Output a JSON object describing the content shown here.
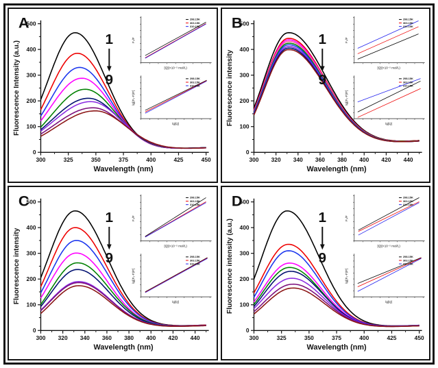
{
  "figure": {
    "border_color": "#141414",
    "background": "#ffffff",
    "panel_letters": [
      "A",
      "B",
      "C",
      "D"
    ]
  },
  "shared": {
    "annotation": {
      "start_label": "1",
      "end_label": "9",
      "arrow": "down-arrow"
    },
    "legend_temperatures": [
      "298.15K",
      "303.15K",
      "310.15K"
    ],
    "legend_marker_colors": [
      "#000000",
      "#ee0000",
      "#2222ee"
    ],
    "inset_top_ylabel": "F₀/F",
    "inset_top_xlabel": "[Q](×10⁻⁵ mol/L)",
    "inset_bottom_ylabel": "lg[(F₀-F)/F]",
    "inset_bottom_xlabel": "lg[Q]"
  },
  "chart_data": [
    {
      "panel": "A",
      "type": "line",
      "xlabel": "Wavelength (nm)",
      "ylabel": "Fluorescence Intensity (a.u.)",
      "xlim": [
        300,
        450
      ],
      "ylim": [
        0,
        500
      ],
      "xticks": [
        300,
        325,
        350,
        375,
        400,
        425,
        450
      ],
      "yticks": [
        0,
        100,
        200,
        300,
        400,
        500
      ],
      "tail_sigma": 28,
      "series": [
        {
          "name": "curve-1",
          "color": "#000000",
          "peak_nm": 331,
          "peak_intensity": 465,
          "value_at_300": 205,
          "value_at_450": 18
        },
        {
          "name": "curve-2",
          "color": "#ee0000",
          "peak_nm": 333,
          "peak_intensity": 385,
          "value_at_300": 166,
          "value_at_450": 18
        },
        {
          "name": "curve-3",
          "color": "#1a35ee",
          "peak_nm": 335,
          "peak_intensity": 330,
          "value_at_300": 141,
          "value_at_450": 18
        },
        {
          "name": "curve-4",
          "color": "#ff00ff",
          "peak_nm": 337,
          "peak_intensity": 288,
          "value_at_300": 122,
          "value_at_450": 18
        },
        {
          "name": "curve-5",
          "color": "#008000",
          "peak_nm": 340,
          "peak_intensity": 245,
          "value_at_300": 98,
          "value_at_450": 18
        },
        {
          "name": "curve-6",
          "color": "#001070",
          "peak_nm": 343,
          "peak_intensity": 210,
          "value_at_300": 88,
          "value_at_450": 18
        },
        {
          "name": "curve-7",
          "color": "#8a2be2",
          "peak_nm": 345,
          "peak_intensity": 197,
          "value_at_300": 82,
          "value_at_450": 17
        },
        {
          "name": "curve-8",
          "color": "#7c0f7c",
          "peak_nm": 347,
          "peak_intensity": 173,
          "value_at_300": 71,
          "value_at_450": 17
        },
        {
          "name": "curve-9",
          "color": "#8b1515",
          "peak_nm": 349,
          "peak_intensity": 161,
          "value_at_300": 62,
          "value_at_450": 17
        }
      ],
      "insets": [
        {
          "id": "stern-volmer-plot",
          "ylabel": "F₀/F",
          "xlabel": "[Q](×10⁻⁵ mol/L)",
          "lines": [
            {
              "color": "#000000",
              "x0": 0.06,
              "y0": 0.16,
              "x1": 0.94,
              "y1": 0.9
            },
            {
              "color": "#ee0000",
              "x0": 0.06,
              "y0": 0.11,
              "x1": 0.94,
              "y1": 0.87
            },
            {
              "color": "#2222ee",
              "x0": 0.06,
              "y0": 0.1,
              "x1": 0.94,
              "y1": 0.86
            }
          ]
        },
        {
          "id": "double-log-plot",
          "ylabel": "lg[(F₀-F)/F]",
          "xlabel": "lg[Q]",
          "lines": [
            {
              "color": "#000000",
              "x0": 0.06,
              "y0": 0.2,
              "x1": 0.95,
              "y1": 0.92
            },
            {
              "color": "#ee0000",
              "x0": 0.06,
              "y0": 0.16,
              "x1": 0.95,
              "y1": 0.91
            },
            {
              "color": "#2222ee",
              "x0": 0.06,
              "y0": 0.13,
              "x1": 0.95,
              "y1": 0.9
            }
          ]
        }
      ]
    },
    {
      "panel": "B",
      "type": "line",
      "xlabel": "Wavelength (nm)",
      "ylabel": "Fluorescence intensity",
      "xlim": [
        300,
        450
      ],
      "ylim": [
        0,
        500
      ],
      "xticks": [
        300,
        320,
        340,
        360,
        380,
        400,
        420,
        440
      ],
      "yticks": [
        0,
        100,
        200,
        300,
        400,
        500
      ],
      "tail_sigma": 34,
      "series": [
        {
          "name": "curve-1",
          "color": "#000000",
          "peak_nm": 331,
          "peak_intensity": 465,
          "value_at_300": 172,
          "value_at_450": 45
        },
        {
          "name": "curve-2",
          "color": "#ee0000",
          "peak_nm": 331,
          "peak_intensity": 443,
          "value_at_300": 164,
          "value_at_450": 45
        },
        {
          "name": "curve-3",
          "color": "#ff00ff",
          "peak_nm": 331,
          "peak_intensity": 437,
          "value_at_300": 161,
          "value_at_450": 44
        },
        {
          "name": "curve-4",
          "color": "#ff5fa2",
          "peak_nm": 331,
          "peak_intensity": 431,
          "value_at_300": 158,
          "value_at_450": 44
        },
        {
          "name": "curve-5",
          "color": "#008000",
          "peak_nm": 331,
          "peak_intensity": 424,
          "value_at_300": 156,
          "value_at_450": 44
        },
        {
          "name": "curve-6",
          "color": "#1a35ee",
          "peak_nm": 331,
          "peak_intensity": 418,
          "value_at_300": 153,
          "value_at_450": 43
        },
        {
          "name": "curve-7",
          "color": "#8a2be2",
          "peak_nm": 331,
          "peak_intensity": 411,
          "value_at_300": 150,
          "value_at_450": 43
        },
        {
          "name": "curve-8",
          "color": "#001070",
          "peak_nm": 331,
          "peak_intensity": 405,
          "value_at_300": 148,
          "value_at_450": 43
        },
        {
          "name": "curve-9",
          "color": "#8b1515",
          "peak_nm": 331,
          "peak_intensity": 399,
          "value_at_300": 145,
          "value_at_450": 43
        }
      ],
      "insets": [
        {
          "id": "stern-volmer-plot",
          "ylabel": "F₀/F",
          "xlabel": "[Q](×10⁻⁵ mol/L)",
          "lines": [
            {
              "color": "#2222ee",
              "x0": 0.05,
              "y0": 0.32,
              "x1": 0.93,
              "y1": 0.93
            },
            {
              "color": "#ee0000",
              "x0": 0.05,
              "y0": 0.2,
              "x1": 0.93,
              "y1": 0.8
            },
            {
              "color": "#000000",
              "x0": 0.05,
              "y0": 0.08,
              "x1": 0.93,
              "y1": 0.64
            }
          ]
        },
        {
          "id": "double-log-plot",
          "ylabel": "lg[(F₀-F)/F]",
          "xlabel": "lg[Q]",
          "lines": [
            {
              "color": "#2222ee",
              "x0": 0.05,
              "y0": 0.4,
              "x1": 0.96,
              "y1": 0.96
            },
            {
              "color": "#000000",
              "x0": 0.05,
              "y0": 0.16,
              "x1": 0.96,
              "y1": 0.9
            },
            {
              "color": "#ee0000",
              "x0": 0.05,
              "y0": 0.03,
              "x1": 0.96,
              "y1": 0.72
            }
          ]
        }
      ]
    },
    {
      "panel": "C",
      "type": "line",
      "xlabel": "Wavelength (nm)",
      "ylabel": "Fluorescence intensity",
      "xlim": [
        300,
        450
      ],
      "ylim": [
        0,
        500
      ],
      "xticks": [
        300,
        320,
        340,
        360,
        380,
        400,
        420,
        440
      ],
      "yticks": [
        0,
        100,
        200,
        300,
        400,
        500
      ],
      "tail_sigma": 29,
      "series": [
        {
          "name": "curve-1",
          "color": "#000000",
          "peak_nm": 331,
          "peak_intensity": 465,
          "value_at_300": 205,
          "value_at_450": 21
        },
        {
          "name": "curve-2",
          "color": "#ee0000",
          "peak_nm": 331,
          "peak_intensity": 400,
          "value_at_300": 170,
          "value_at_450": 21
        },
        {
          "name": "curve-3",
          "color": "#1a35ee",
          "peak_nm": 332,
          "peak_intensity": 350,
          "value_at_300": 146,
          "value_at_450": 20
        },
        {
          "name": "curve-4",
          "color": "#ff00ff",
          "peak_nm": 332,
          "peak_intensity": 301,
          "value_at_300": 126,
          "value_at_450": 20
        },
        {
          "name": "curve-5",
          "color": "#008000",
          "peak_nm": 333,
          "peak_intensity": 263,
          "value_at_300": 101,
          "value_at_450": 20
        },
        {
          "name": "curve-6",
          "color": "#001070",
          "peak_nm": 333,
          "peak_intensity": 237,
          "value_at_300": 93,
          "value_at_450": 20
        },
        {
          "name": "curve-7",
          "color": "#8a2be2",
          "peak_nm": 334,
          "peak_intensity": 190,
          "value_at_300": 79,
          "value_at_450": 20
        },
        {
          "name": "curve-8",
          "color": "#7c0f7c",
          "peak_nm": 334,
          "peak_intensity": 186,
          "value_at_300": 77,
          "value_at_450": 19
        },
        {
          "name": "curve-9",
          "color": "#8b1515",
          "peak_nm": 334,
          "peak_intensity": 174,
          "value_at_300": 66,
          "value_at_450": 19
        }
      ],
      "insets": [
        {
          "id": "stern-volmer-plot",
          "ylabel": "F₀/F",
          "xlabel": "[Q](×10⁻⁵ mol/L)",
          "lines": [
            {
              "color": "#000000",
              "x0": 0.06,
              "y0": 0.1,
              "x1": 0.94,
              "y1": 0.96
            },
            {
              "color": "#ee0000",
              "x0": 0.06,
              "y0": 0.09,
              "x1": 0.94,
              "y1": 0.87
            },
            {
              "color": "#2222ee",
              "x0": 0.06,
              "y0": 0.085,
              "x1": 0.94,
              "y1": 0.85
            }
          ]
        },
        {
          "id": "double-log-plot",
          "ylabel": "lg[(F₀-F)/F]",
          "xlabel": "lg[Q]",
          "lines": [
            {
              "color": "#000000",
              "x0": 0.06,
              "y0": 0.12,
              "x1": 0.96,
              "y1": 0.94
            },
            {
              "color": "#ee0000",
              "x0": 0.06,
              "y0": 0.11,
              "x1": 0.96,
              "y1": 0.93
            },
            {
              "color": "#2222ee",
              "x0": 0.06,
              "y0": 0.1,
              "x1": 0.96,
              "y1": 0.92
            }
          ]
        }
      ]
    },
    {
      "panel": "D",
      "type": "line",
      "xlabel": "Wavelength (nm)",
      "ylabel": "Fluorescence intensity (a.u.)",
      "xlim": [
        300,
        450
      ],
      "ylim": [
        0,
        500
      ],
      "xticks": [
        300,
        325,
        350,
        375,
        400,
        425,
        450
      ],
      "yticks": [
        0,
        100,
        200,
        300,
        400,
        500
      ],
      "tail_sigma": 29,
      "series": [
        {
          "name": "curve-1",
          "color": "#000000",
          "peak_nm": 330,
          "peak_intensity": 465,
          "value_at_300": 200,
          "value_at_450": 20
        },
        {
          "name": "curve-2",
          "color": "#ee0000",
          "peak_nm": 331,
          "peak_intensity": 335,
          "value_at_300": 146,
          "value_at_450": 20
        },
        {
          "name": "curve-3",
          "color": "#1a35ee",
          "peak_nm": 331,
          "peak_intensity": 310,
          "value_at_300": 129,
          "value_at_450": 20
        },
        {
          "name": "curve-4",
          "color": "#ff00ff",
          "peak_nm": 332,
          "peak_intensity": 262,
          "value_at_300": 111,
          "value_at_450": 19
        },
        {
          "name": "curve-5",
          "color": "#008000",
          "peak_nm": 332,
          "peak_intensity": 245,
          "value_at_300": 101,
          "value_at_450": 19
        },
        {
          "name": "curve-6",
          "color": "#001070",
          "peak_nm": 333,
          "peak_intensity": 230,
          "value_at_300": 93,
          "value_at_450": 19
        },
        {
          "name": "curve-7",
          "color": "#8a2be2",
          "peak_nm": 334,
          "peak_intensity": 203,
          "value_at_300": 85,
          "value_at_450": 19
        },
        {
          "name": "curve-8",
          "color": "#7c0f7c",
          "peak_nm": 335,
          "peak_intensity": 180,
          "value_at_300": 73,
          "value_at_450": 18
        },
        {
          "name": "curve-9",
          "color": "#8b1515",
          "peak_nm": 335,
          "peak_intensity": 165,
          "value_at_300": 64,
          "value_at_450": 18
        }
      ],
      "insets": [
        {
          "id": "stern-volmer-plot",
          "ylabel": "F₀/F",
          "xlabel": "[Q](×10⁻⁵ mol/L)",
          "lines": [
            {
              "color": "#000000",
              "x0": 0.06,
              "y0": 0.24,
              "x1": 0.94,
              "y1": 0.96
            },
            {
              "color": "#ee0000",
              "x0": 0.06,
              "y0": 0.21,
              "x1": 0.94,
              "y1": 0.87
            },
            {
              "color": "#2222ee",
              "x0": 0.06,
              "y0": 0.13,
              "x1": 0.94,
              "y1": 0.85
            }
          ]
        },
        {
          "id": "double-log-plot",
          "ylabel": "lg[(F₀-F)/F]",
          "xlabel": "lg[Q]",
          "lines": [
            {
              "color": "#000000",
              "x0": 0.05,
              "y0": 0.32,
              "x1": 0.97,
              "y1": 0.94
            },
            {
              "color": "#ee0000",
              "x0": 0.05,
              "y0": 0.24,
              "x1": 0.97,
              "y1": 0.93
            },
            {
              "color": "#2222ee",
              "x0": 0.05,
              "y0": 0.13,
              "x1": 0.97,
              "y1": 0.92
            }
          ]
        }
      ]
    }
  ]
}
